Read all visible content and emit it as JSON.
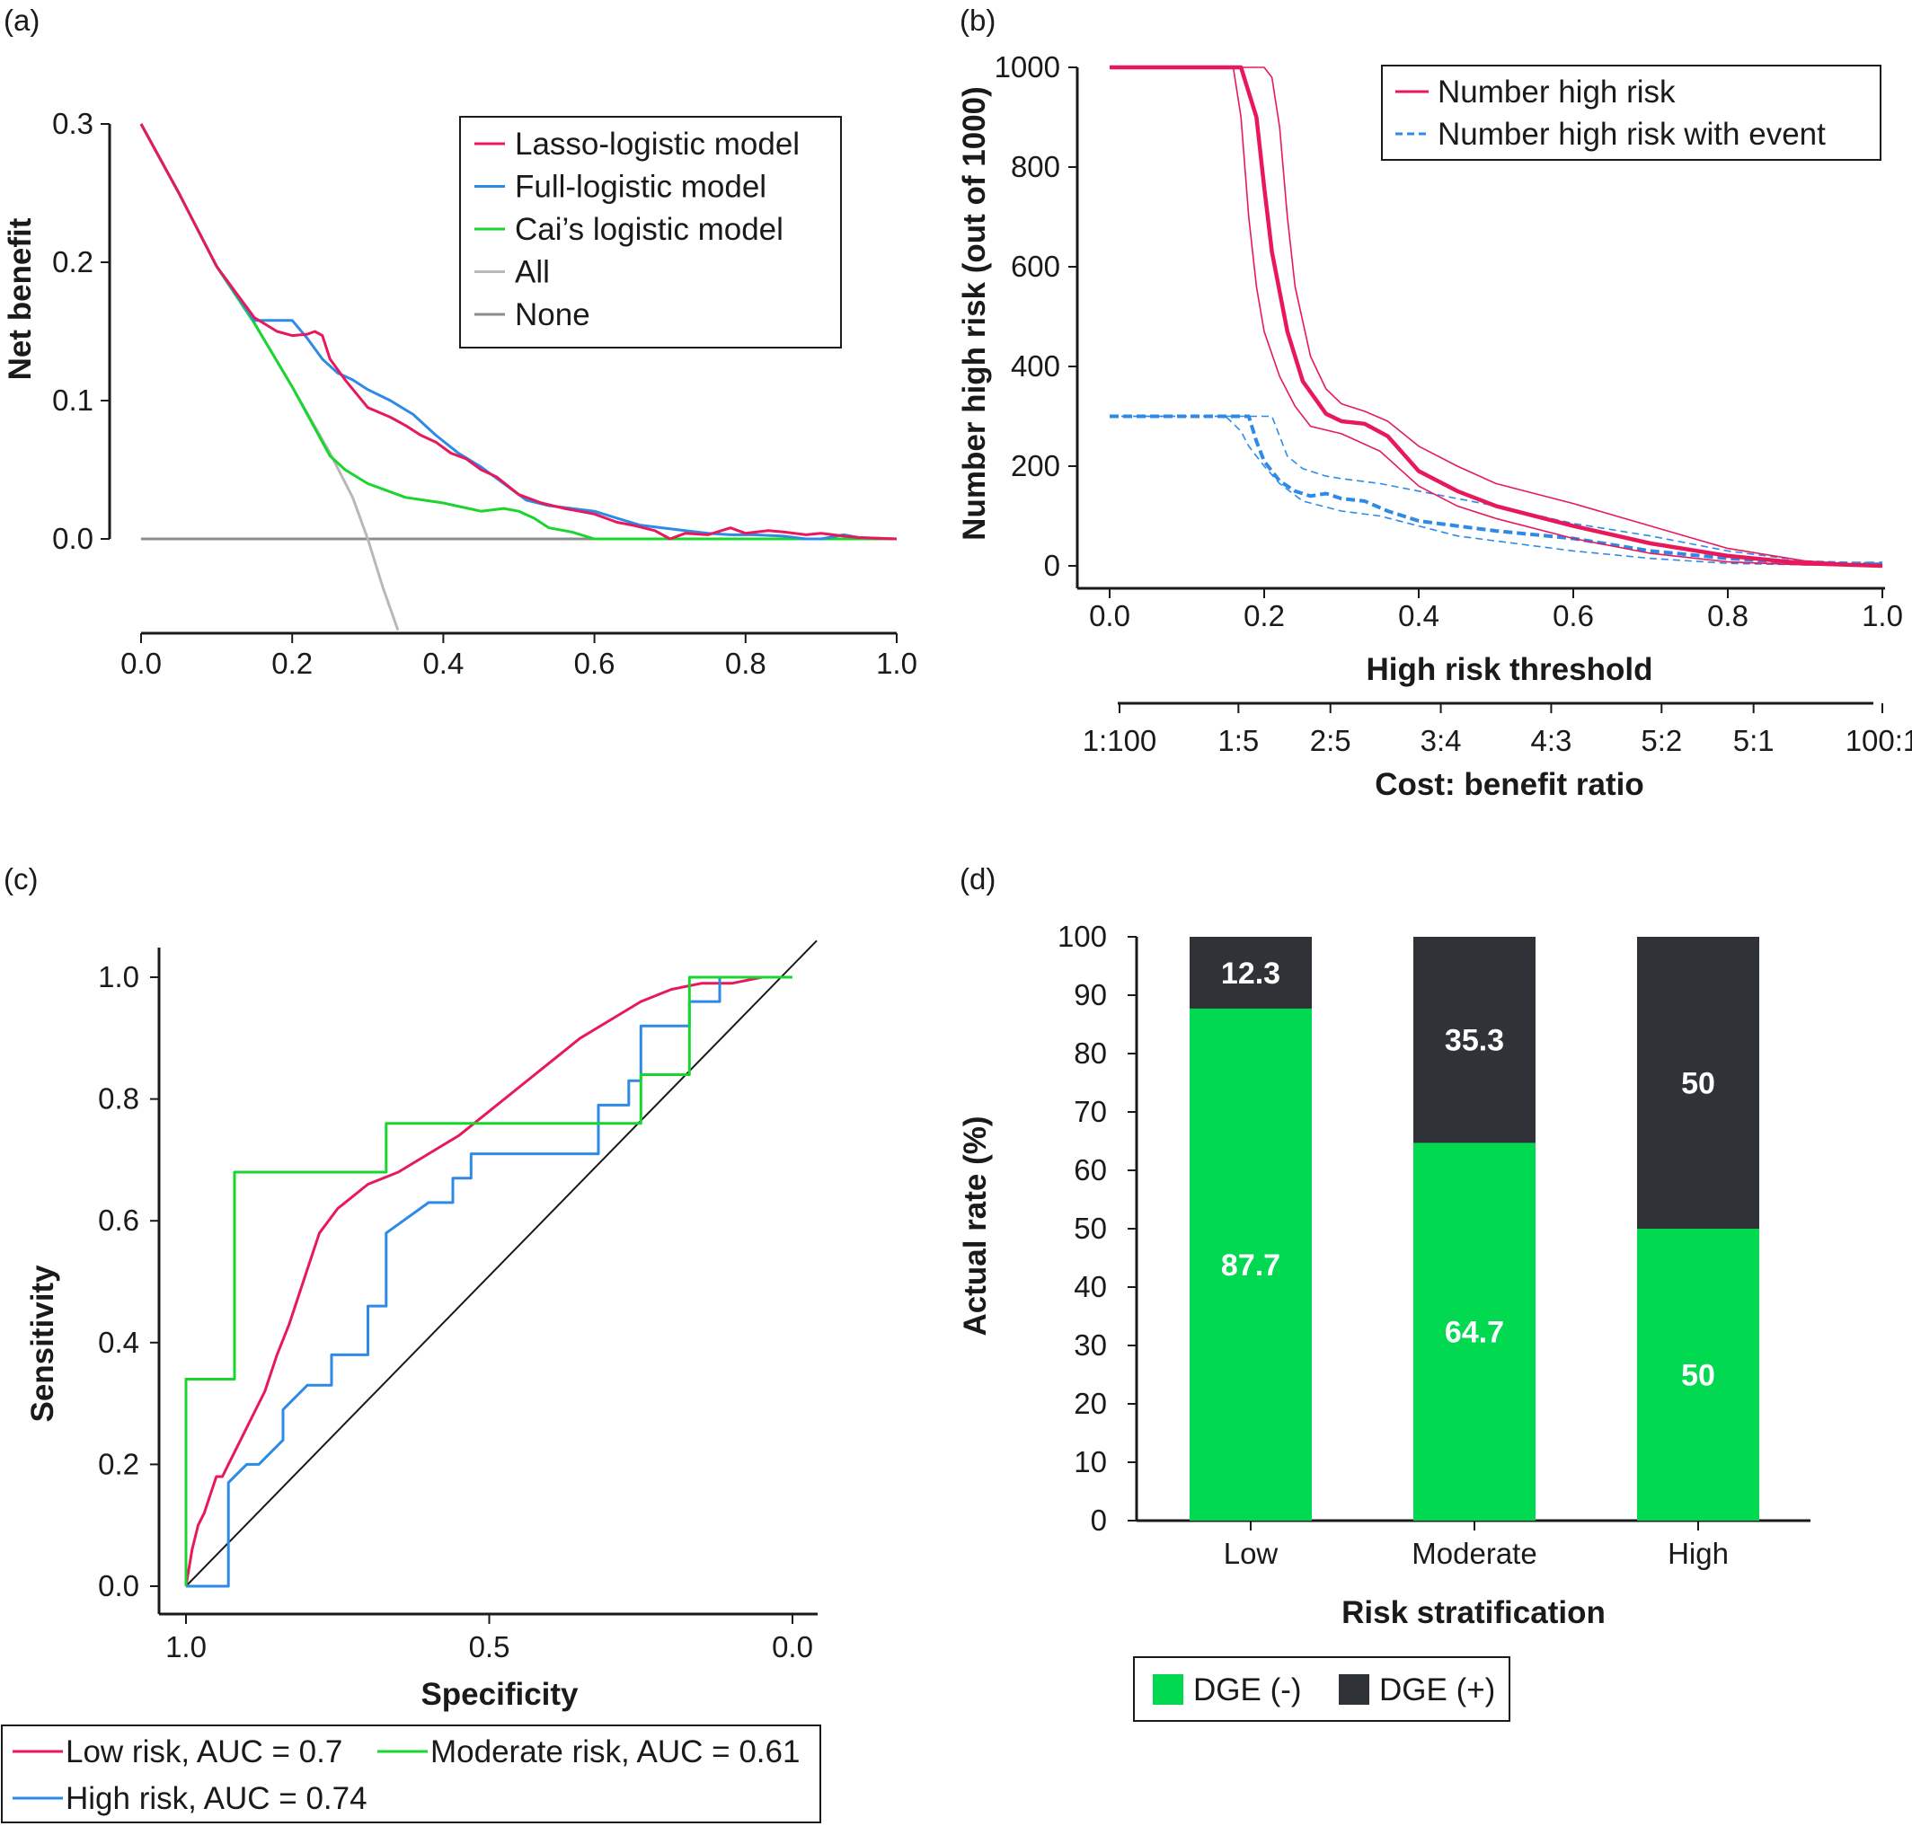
{
  "colors": {
    "red": "#e8185b",
    "blue": "#2d8ae6",
    "green": "#19d62f",
    "light_gray": "#b8b8b8",
    "dark_gray": "#8c8c8c",
    "bar_green": "#00d950",
    "bar_dark": "#2f3337"
  },
  "chart_data": [
    {
      "panel": "(a)",
      "type": "line",
      "xlabel": "",
      "ylabel": "Net benefit",
      "xlim": [
        0,
        1
      ],
      "ylim": [
        -0.07,
        0.3
      ],
      "x_ticks": [
        "0.0",
        "0.2",
        "0.4",
        "0.6",
        "0.8",
        "1.0"
      ],
      "y_ticks": [
        "0.0",
        "0.1",
        "0.2",
        "0.3"
      ],
      "legend": [
        "Lasso-logistic model",
        "Full-logistic model",
        "Cai’s logistic model",
        "All",
        "None"
      ],
      "series": [
        {
          "name": "Lasso-logistic model",
          "x": [
            0.0,
            0.05,
            0.1,
            0.15,
            0.18,
            0.2,
            0.22,
            0.23,
            0.24,
            0.25,
            0.27,
            0.3,
            0.33,
            0.35,
            0.37,
            0.39,
            0.41,
            0.43,
            0.45,
            0.47,
            0.5,
            0.53,
            0.56,
            0.6,
            0.63,
            0.65,
            0.68,
            0.7,
            0.72,
            0.75,
            0.78,
            0.8,
            0.83,
            0.85,
            0.88,
            0.9,
            0.93,
            0.95,
            1.0
          ],
          "y": [
            0.3,
            0.25,
            0.197,
            0.16,
            0.15,
            0.147,
            0.148,
            0.15,
            0.147,
            0.13,
            0.115,
            0.095,
            0.088,
            0.082,
            0.075,
            0.07,
            0.062,
            0.058,
            0.05,
            0.045,
            0.032,
            0.026,
            0.022,
            0.018,
            0.012,
            0.01,
            0.006,
            0.0,
            0.004,
            0.003,
            0.008,
            0.004,
            0.006,
            0.005,
            0.003,
            0.004,
            0.002,
            0.001,
            0.0
          ]
        },
        {
          "name": "Full-logistic model",
          "x": [
            0.0,
            0.05,
            0.1,
            0.15,
            0.2,
            0.22,
            0.24,
            0.26,
            0.28,
            0.3,
            0.33,
            0.36,
            0.39,
            0.42,
            0.45,
            0.48,
            0.51,
            0.54,
            0.57,
            0.6,
            0.63,
            0.66,
            0.69,
            0.72,
            0.75,
            0.78,
            0.81,
            0.85,
            0.88,
            0.9,
            0.93,
            0.95,
            1.0
          ],
          "y": [
            0.3,
            0.25,
            0.197,
            0.158,
            0.158,
            0.145,
            0.13,
            0.12,
            0.115,
            0.108,
            0.1,
            0.09,
            0.075,
            0.062,
            0.052,
            0.04,
            0.028,
            0.024,
            0.022,
            0.02,
            0.015,
            0.01,
            0.008,
            0.006,
            0.004,
            0.003,
            0.003,
            0.002,
            0.0,
            0.0,
            0.003,
            0.001,
            0.0
          ]
        },
        {
          "name": "Cai’s logistic model",
          "x": [
            0.0,
            0.05,
            0.1,
            0.15,
            0.2,
            0.25,
            0.27,
            0.3,
            0.35,
            0.4,
            0.45,
            0.48,
            0.5,
            0.52,
            0.54,
            0.57,
            0.6,
            0.7,
            0.8,
            0.9,
            1.0
          ],
          "y": [
            0.3,
            0.25,
            0.197,
            0.156,
            0.11,
            0.06,
            0.05,
            0.04,
            0.03,
            0.026,
            0.02,
            0.022,
            0.02,
            0.015,
            0.008,
            0.005,
            0.0,
            0.0,
            0.0,
            0.0,
            0.0
          ]
        },
        {
          "name": "All",
          "x": [
            0.0,
            0.05,
            0.1,
            0.15,
            0.2,
            0.25,
            0.28,
            0.3,
            0.32,
            0.34
          ],
          "y": [
            0.3,
            0.25,
            0.197,
            0.156,
            0.11,
            0.062,
            0.03,
            0.0,
            -0.035,
            -0.066
          ]
        },
        {
          "name": "None",
          "x": [
            0.0,
            1.0
          ],
          "y": [
            0.0,
            0.0
          ]
        }
      ]
    },
    {
      "panel": "(b)",
      "type": "line",
      "xlabel": "High risk threshold",
      "ylabel": "Number high risk (out of 1000)",
      "xlim": [
        -0.04,
        1.0
      ],
      "ylim": [
        0,
        1000
      ],
      "x_ticks": [
        "0.0",
        "0.2",
        "0.4",
        "0.6",
        "0.8",
        "1.0"
      ],
      "y_ticks": [
        "0",
        "200",
        "400",
        "600",
        "800",
        "1000"
      ],
      "secondary_axis_label": "Cost: benefit ratio",
      "secondary_ticks": [
        "1:100",
        "1:5",
        "2:5",
        "3:4",
        "4:3",
        "5:2",
        "5:1",
        "100:1"
      ],
      "legend": [
        "Number high risk",
        "Number high risk with event"
      ],
      "series": [
        {
          "name": "Number high risk",
          "x": [
            0.0,
            0.1,
            0.17,
            0.19,
            0.2,
            0.21,
            0.23,
            0.25,
            0.28,
            0.3,
            0.33,
            0.36,
            0.4,
            0.45,
            0.5,
            0.6,
            0.7,
            0.8,
            0.9,
            1.0
          ],
          "y": [
            1000,
            1000,
            1000,
            900,
            760,
            630,
            470,
            370,
            305,
            290,
            285,
            260,
            190,
            150,
            120,
            80,
            45,
            20,
            5,
            0
          ]
        },
        {
          "name": "Number high risk upper CI",
          "x": [
            0.0,
            0.1,
            0.2,
            0.21,
            0.22,
            0.23,
            0.24,
            0.26,
            0.28,
            0.3,
            0.33,
            0.36,
            0.4,
            0.45,
            0.5,
            0.6,
            0.7,
            0.8,
            0.9,
            1.0
          ],
          "y": [
            1000,
            1000,
            1000,
            980,
            880,
            700,
            560,
            420,
            355,
            325,
            310,
            290,
            240,
            200,
            165,
            125,
            80,
            35,
            10,
            0
          ]
        },
        {
          "name": "Number high risk lower CI",
          "x": [
            0.0,
            0.1,
            0.16,
            0.17,
            0.18,
            0.19,
            0.2,
            0.22,
            0.24,
            0.26,
            0.3,
            0.35,
            0.4,
            0.45,
            0.5,
            0.6,
            0.7,
            0.8,
            0.9,
            1.0
          ],
          "y": [
            1000,
            1000,
            1000,
            900,
            700,
            560,
            470,
            380,
            320,
            280,
            265,
            230,
            160,
            120,
            95,
            55,
            25,
            8,
            2,
            0
          ]
        },
        {
          "name": "Number high risk with event",
          "x": [
            0.0,
            0.1,
            0.18,
            0.19,
            0.2,
            0.22,
            0.24,
            0.26,
            0.28,
            0.3,
            0.33,
            0.36,
            0.4,
            0.45,
            0.5,
            0.6,
            0.7,
            0.8,
            0.9,
            1.0
          ],
          "y": [
            300,
            300,
            300,
            250,
            210,
            170,
            150,
            140,
            145,
            135,
            130,
            110,
            90,
            80,
            70,
            55,
            30,
            15,
            5,
            5
          ]
        },
        {
          "name": "Number high risk with event upper CI",
          "x": [
            0.0,
            0.1,
            0.21,
            0.22,
            0.23,
            0.25,
            0.28,
            0.3,
            0.35,
            0.4,
            0.45,
            0.5,
            0.6,
            0.7,
            0.8,
            0.9,
            1.0
          ],
          "y": [
            300,
            300,
            300,
            260,
            220,
            195,
            180,
            175,
            165,
            150,
            135,
            120,
            85,
            60,
            30,
            10,
            5
          ]
        },
        {
          "name": "Number high risk with event lower CI",
          "x": [
            0.0,
            0.1,
            0.15,
            0.17,
            0.18,
            0.2,
            0.22,
            0.25,
            0.3,
            0.35,
            0.4,
            0.45,
            0.5,
            0.6,
            0.7,
            0.8,
            0.9,
            1.0
          ],
          "y": [
            300,
            300,
            300,
            270,
            240,
            200,
            165,
            130,
            110,
            100,
            80,
            60,
            50,
            30,
            15,
            5,
            2,
            5
          ]
        }
      ]
    },
    {
      "panel": "(c)",
      "type": "line",
      "xlabel": "Specificity",
      "ylabel": "Sensitivity",
      "xlim": [
        1.04,
        -0.05
      ],
      "ylim": [
        -0.06,
        1.06
      ],
      "x_ticks": [
        "1.0",
        "0.5",
        "0.0"
      ],
      "y_ticks": [
        "0.0",
        "0.2",
        "0.4",
        "0.6",
        "0.8",
        "1.0"
      ],
      "legend": [
        "Low risk, AUC = 0.7",
        "Moderate risk, AUC = 0.61",
        "High risk, AUC = 0.74"
      ],
      "series": [
        {
          "name": "Low risk, AUC = 0.7",
          "x": [
            1.0,
            0.99,
            0.98,
            0.97,
            0.96,
            0.95,
            0.94,
            0.93,
            0.9,
            0.87,
            0.85,
            0.83,
            0.8,
            0.78,
            0.75,
            0.7,
            0.65,
            0.6,
            0.55,
            0.5,
            0.45,
            0.4,
            0.35,
            0.3,
            0.25,
            0.2,
            0.15,
            0.1,
            0.05,
            0.0
          ],
          "y": [
            0.0,
            0.06,
            0.1,
            0.12,
            0.15,
            0.18,
            0.18,
            0.2,
            0.26,
            0.32,
            0.38,
            0.43,
            0.52,
            0.58,
            0.62,
            0.66,
            0.68,
            0.71,
            0.74,
            0.78,
            0.82,
            0.86,
            0.9,
            0.93,
            0.96,
            0.98,
            0.99,
            0.99,
            1.0,
            1.0
          ]
        },
        {
          "name": "Moderate risk, AUC = 0.61",
          "x": [
            1.0,
            1.0,
            0.92,
            0.92,
            0.67,
            0.67,
            0.25,
            0.25,
            0.17,
            0.17,
            0.0
          ],
          "y": [
            0.0,
            0.34,
            0.34,
            0.68,
            0.68,
            0.76,
            0.76,
            0.84,
            0.84,
            1.0,
            1.0
          ]
        },
        {
          "name": "High risk, AUC = 0.74",
          "x": [
            1.0,
            0.93,
            0.93,
            0.9,
            0.88,
            0.84,
            0.84,
            0.8,
            0.76,
            0.76,
            0.7,
            0.7,
            0.67,
            0.67,
            0.6,
            0.56,
            0.56,
            0.53,
            0.53,
            0.32,
            0.32,
            0.27,
            0.27,
            0.25,
            0.25,
            0.17,
            0.17,
            0.12,
            0.12,
            0.0
          ],
          "y": [
            0.0,
            0.0,
            0.17,
            0.2,
            0.2,
            0.24,
            0.29,
            0.33,
            0.33,
            0.38,
            0.38,
            0.46,
            0.46,
            0.58,
            0.63,
            0.63,
            0.67,
            0.67,
            0.71,
            0.71,
            0.79,
            0.79,
            0.83,
            0.83,
            0.92,
            0.92,
            0.96,
            0.96,
            1.0,
            1.0
          ]
        },
        {
          "name": "Reference",
          "x": [
            1.0,
            -0.04
          ],
          "y": [
            0.0,
            1.06
          ]
        }
      ]
    },
    {
      "panel": "(d)",
      "type": "bar",
      "stacked": true,
      "xlabel": "Risk stratification",
      "ylabel": "Actual rate (%)",
      "ylim": [
        0,
        100
      ],
      "y_ticks": [
        "0",
        "10",
        "20",
        "30",
        "40",
        "50",
        "60",
        "70",
        "80",
        "90",
        "100"
      ],
      "categories": [
        "Low",
        "Moderate",
        "High"
      ],
      "legend": [
        "DGE (-)",
        "DGE (+)"
      ],
      "series": [
        {
          "name": "DGE (-)",
          "values": [
            87.7,
            64.7,
            50
          ],
          "labels": [
            "87.7",
            "64.7",
            "50"
          ]
        },
        {
          "name": "DGE (+)",
          "values": [
            12.3,
            35.3,
            50
          ],
          "labels": [
            "12.3",
            "35.3",
            "50"
          ]
        }
      ]
    }
  ]
}
